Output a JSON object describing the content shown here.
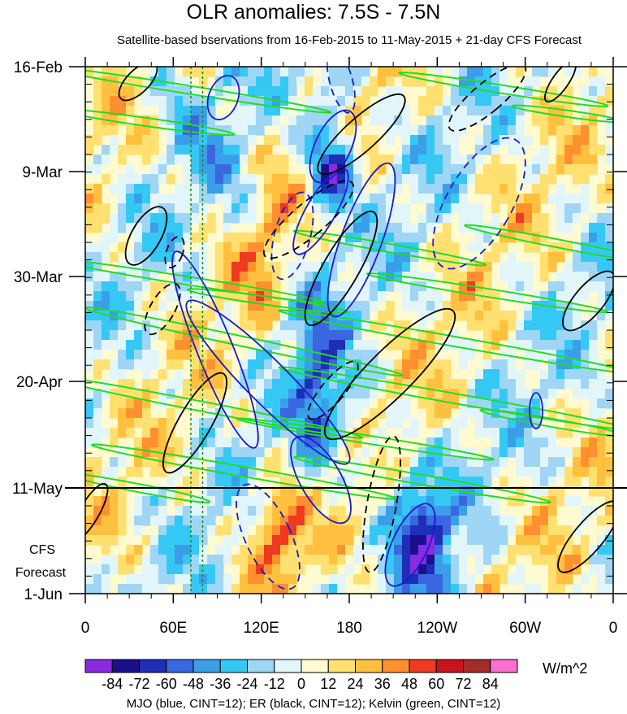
{
  "chart_data": {
    "type": "heatmap",
    "title": "OLR anomalies: 7.5S - 7.5N",
    "subtitle": "Satellite-based bservations from 16-Feb-2015 to 11-May-2015 + 21-day CFS Forecast",
    "x_ticks": [
      "0",
      "60E",
      "120E",
      "180",
      "120W",
      "60W",
      "0"
    ],
    "y_ticks": [
      "16-Feb",
      "9-Mar",
      "30-Mar",
      "20-Apr",
      "11-May",
      "1-Jun"
    ],
    "forecast_label_1": "CFS",
    "forecast_label_2": "Forecast",
    "xlim": [
      0,
      360
    ],
    "time_range": [
      "16-Feb-2015",
      "1-Jun-2015"
    ],
    "observation_end": "11-May",
    "colorbar": {
      "levels": [
        -84,
        -72,
        -60,
        -48,
        -36,
        -24,
        -12,
        0,
        12,
        24,
        36,
        48,
        60,
        72,
        84
      ],
      "level_labels": [
        "-84",
        "-72",
        "-60",
        "-48",
        "-36",
        "-24",
        "-12",
        "0",
        "12",
        "24",
        "36",
        "48",
        "60",
        "72",
        "84"
      ],
      "colors": [
        "#8a2be2",
        "#1c0f8c",
        "#1e2eb8",
        "#3a66e0",
        "#3a9fe8",
        "#35c8f5",
        "#9fd6f5",
        "#e2f6fa",
        "#fffad0",
        "#ffe070",
        "#ffc040",
        "#ff9030",
        "#ee3a20",
        "#c8141c",
        "#a52a2a",
        "#ff6fcf"
      ],
      "units": "W/m^2"
    },
    "contour_legend": "MJO (blue, CINT=12); ER (black, CINT=12); Kelvin (green, CINT=12)",
    "series": [
      {
        "name": "MJO",
        "color": "#1a1acc"
      },
      {
        "name": "ER",
        "color": "#000000"
      },
      {
        "name": "Kelvin",
        "color": "#22dd22"
      }
    ],
    "reference_lines_lon": [
      72,
      80
    ]
  }
}
